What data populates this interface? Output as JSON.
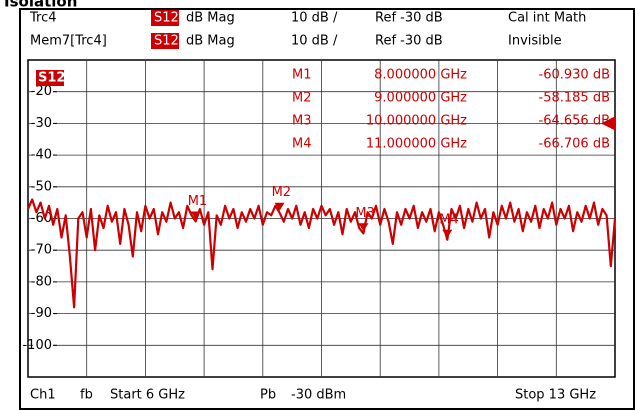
{
  "header": {
    "row1": {
      "trace": "Trc4",
      "param": "S12",
      "format": "dB Mag",
      "scale": "10 dB /",
      "ref": "Ref -30 dB",
      "status": "Cal int Math"
    },
    "row2": {
      "trace": "Mem7[Trc4]",
      "param": "S12",
      "format": "dB Mag",
      "scale": "10 dB /",
      "ref": "Ref -30 dB",
      "status": "Invisible"
    }
  },
  "footer": {
    "channel": "Ch1",
    "mode": "fb",
    "start": "Start 6 GHz",
    "power_label": "Pb",
    "power": "-30 dBm",
    "stop": "Stop 13 GHz"
  },
  "chart_data": {
    "type": "line",
    "title": "Isolation",
    "trace_label": "S12",
    "xlim": [
      6,
      13
    ],
    "ylim": [
      -110,
      -10
    ],
    "yticks": [
      -20,
      -30,
      -40,
      -50,
      -60,
      -70,
      -80,
      -90,
      -100
    ],
    "grid": true,
    "x_divisions": 10,
    "color": "#cc0000",
    "x": [
      6,
      6.05,
      6.1,
      6.15,
      6.2,
      6.25,
      6.3,
      6.35,
      6.4,
      6.45,
      6.5,
      6.55,
      6.6,
      6.65,
      6.7,
      6.75,
      6.8,
      6.85,
      6.9,
      6.95,
      7,
      7.05,
      7.1,
      7.15,
      7.2,
      7.25,
      7.3,
      7.35,
      7.4,
      7.45,
      7.5,
      7.55,
      7.6,
      7.65,
      7.7,
      7.75,
      7.8,
      7.85,
      7.9,
      7.95,
      8,
      8.05,
      8.1,
      8.15,
      8.2,
      8.25,
      8.3,
      8.35,
      8.4,
      8.45,
      8.5,
      8.55,
      8.6,
      8.65,
      8.7,
      8.75,
      8.8,
      8.85,
      8.9,
      8.95,
      9,
      9.05,
      9.1,
      9.15,
      9.2,
      9.25,
      9.3,
      9.35,
      9.4,
      9.45,
      9.5,
      9.55,
      9.6,
      9.65,
      9.7,
      9.75,
      9.8,
      9.85,
      9.9,
      9.95,
      10,
      10.05,
      10.1,
      10.15,
      10.2,
      10.25,
      10.3,
      10.35,
      10.4,
      10.45,
      10.5,
      10.55,
      10.6,
      10.65,
      10.7,
      10.75,
      10.8,
      10.85,
      10.9,
      10.95,
      11,
      11.05,
      11.1,
      11.15,
      11.2,
      11.25,
      11.3,
      11.35,
      11.4,
      11.45,
      11.5,
      11.55,
      11.6,
      11.65,
      11.7,
      11.75,
      11.8,
      11.85,
      11.9,
      11.95,
      12,
      12.05,
      12.1,
      12.15,
      12.2,
      12.25,
      12.3,
      12.35,
      12.4,
      12.45,
      12.5,
      12.55,
      12.6,
      12.65,
      12.7,
      12.75,
      12.8,
      12.85,
      12.9,
      12.95,
      13
    ],
    "values": [
      -57,
      -54,
      -58,
      -55,
      -60,
      -56,
      -62,
      -57,
      -66,
      -59,
      -72,
      -88,
      -60,
      -58,
      -66,
      -57,
      -70,
      -59,
      -63,
      -56,
      -61,
      -58,
      -68,
      -57,
      -62,
      -72,
      -58,
      -64,
      -56,
      -60,
      -57,
      -65,
      -58,
      -61,
      -55,
      -60,
      -58,
      -63,
      -56,
      -59,
      -60.9,
      -57,
      -62,
      -58,
      -76,
      -59,
      -62,
      -56,
      -60,
      -57,
      -63,
      -58,
      -61,
      -57,
      -60,
      -56,
      -62,
      -58,
      -59,
      -56,
      -58.2,
      -61,
      -57,
      -60,
      -56,
      -62,
      -58,
      -63,
      -57,
      -60,
      -56,
      -59,
      -57,
      -62,
      -58,
      -65,
      -57,
      -61,
      -58,
      -63,
      -64.7,
      -58,
      -60,
      -56,
      -62,
      -57,
      -61,
      -68,
      -58,
      -62,
      -57,
      -60,
      -56,
      -63,
      -58,
      -61,
      -57,
      -64,
      -58,
      -62,
      -66.7,
      -57,
      -60,
      -56,
      -63,
      -57,
      -61,
      -55,
      -60,
      -57,
      -66,
      -58,
      -62,
      -56,
      -60,
      -55,
      -61,
      -57,
      -64,
      -58,
      -61,
      -56,
      -63,
      -57,
      -60,
      -55,
      -62,
      -57,
      -60,
      -56,
      -64,
      -58,
      -61,
      -56,
      -60,
      -55,
      -62,
      -57,
      -59,
      -75,
      -60
    ],
    "markers": {
      "names": [
        "M1",
        "M2",
        "M3",
        "M4"
      ],
      "x": [
        8,
        9,
        10,
        11
      ],
      "values": [
        -60.93,
        -58.185,
        -64.656,
        -66.706
      ],
      "x_labels": [
        "8.000000 GHz",
        "9.000000 GHz",
        "10.000000 GHz",
        "11.000000 GHz"
      ],
      "value_labels": [
        "-60.930 dB",
        "-58.185 dB",
        "-64.656 dB",
        "-66.706 dB"
      ]
    }
  }
}
